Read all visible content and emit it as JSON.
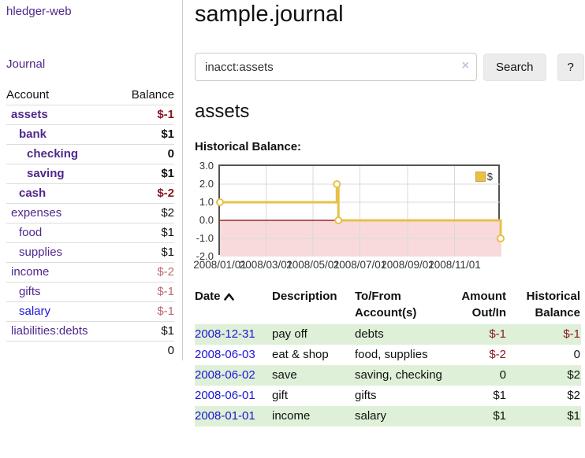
{
  "theme": {
    "accent_purple": "#50288c",
    "link_blue": "#1a16d6",
    "neg_strong": "#8b1723",
    "neg_muted": "#bd6a6e",
    "stripe_green": "#dff0d8",
    "chart_line": "#e8c04a",
    "chart_negative_fill": "#f8dada",
    "zero_line": "#8b0000",
    "border_gray": "#cccccc"
  },
  "sidebar": {
    "brand": "hledger-web",
    "journal_link": "Journal",
    "headers": {
      "account": "Account",
      "balance": "Balance"
    },
    "accounts": [
      {
        "name": "assets",
        "depth": 1,
        "bold": true,
        "balance": "$-1",
        "tone": "neg-strong"
      },
      {
        "name": "bank",
        "depth": 2,
        "bold": true,
        "balance": "$1",
        "tone": "normal"
      },
      {
        "name": "checking",
        "depth": 3,
        "bold": true,
        "balance": "0",
        "tone": "normal"
      },
      {
        "name": "saving",
        "depth": 3,
        "bold": true,
        "balance": "$1",
        "tone": "normal"
      },
      {
        "name": "cash",
        "depth": 2,
        "bold": true,
        "balance": "$-2",
        "tone": "neg-strong"
      },
      {
        "name": "expenses",
        "depth": 1,
        "bold": false,
        "balance": "$2",
        "tone": "normal"
      },
      {
        "name": "food",
        "depth": 2,
        "bold": false,
        "balance": "$1",
        "tone": "normal"
      },
      {
        "name": "supplies",
        "depth": 2,
        "bold": false,
        "balance": "$1",
        "tone": "normal"
      },
      {
        "name": "income",
        "depth": 1,
        "bold": false,
        "balance": "$-2",
        "tone": "neg-muted"
      },
      {
        "name": "gifts",
        "depth": 2,
        "bold": false,
        "balance": "$-1",
        "tone": "neg-muted"
      },
      {
        "name": "salary",
        "depth": 2,
        "bold": false,
        "balance": "$-1",
        "tone": "neg-muted",
        "link": "blue"
      },
      {
        "name": "liabilities:debts",
        "depth": 1,
        "bold": false,
        "balance": "$1",
        "tone": "normal"
      }
    ],
    "total": "0"
  },
  "main": {
    "title": "sample.journal",
    "search": {
      "value": "inacct:assets",
      "clear_icon": "×",
      "button": "Search",
      "help": "?"
    },
    "account_heading": "assets",
    "section_label": "Historical Balance:"
  },
  "chart_data": {
    "type": "line",
    "step": true,
    "title": "Historical Balance",
    "legend_label": "$",
    "legend_position": "top-right",
    "grid": true,
    "x_range": [
      "2008-01-01",
      "2009-01-01"
    ],
    "ylim": [
      -2,
      3
    ],
    "yticks": [
      "3.0",
      "2.0",
      "1.0",
      "0.0",
      "-1.0",
      "-2.0"
    ],
    "ytick_values": [
      3,
      2,
      1,
      0,
      -1,
      -2
    ],
    "gridline_values": [
      2,
      1,
      -1
    ],
    "xticks": [
      "2008/01/01",
      "2008/03/01",
      "2008/05/01",
      "2008/07/01",
      "2008/09/01",
      "2008/11/01"
    ],
    "series": [
      {
        "name": "$",
        "color": "#e8c04a",
        "points": [
          [
            "2008-01-01",
            1
          ],
          [
            "2008-06-01",
            2
          ],
          [
            "2008-06-03",
            0
          ],
          [
            "2008-12-31",
            -1
          ]
        ]
      }
    ],
    "negative_fill": "#f8dada",
    "zero_line_color": "#8b0000",
    "gridline_color": "#d9d9d9"
  },
  "register": {
    "headers": [
      "Date",
      "Description",
      "To/From Account(s)",
      "Amount Out/In",
      "Historical Balance"
    ],
    "sort": {
      "column": "Date",
      "direction": "asc"
    },
    "rows": [
      {
        "date": "2008-12-31",
        "description": "pay off",
        "accounts": "debts",
        "amount": "$-1",
        "balance": "$-1"
      },
      {
        "date": "2008-06-03",
        "description": "eat & shop",
        "accounts": "food, supplies",
        "amount": "$-2",
        "balance": "0"
      },
      {
        "date": "2008-06-02",
        "description": "save",
        "accounts": "saving, checking",
        "amount": "0",
        "balance": "$2"
      },
      {
        "date": "2008-06-01",
        "description": "gift",
        "accounts": "gifts",
        "amount": "$1",
        "balance": "$2"
      },
      {
        "date": "2008-01-01",
        "description": "income",
        "accounts": "salary",
        "amount": "$1",
        "balance": "$1"
      }
    ]
  }
}
